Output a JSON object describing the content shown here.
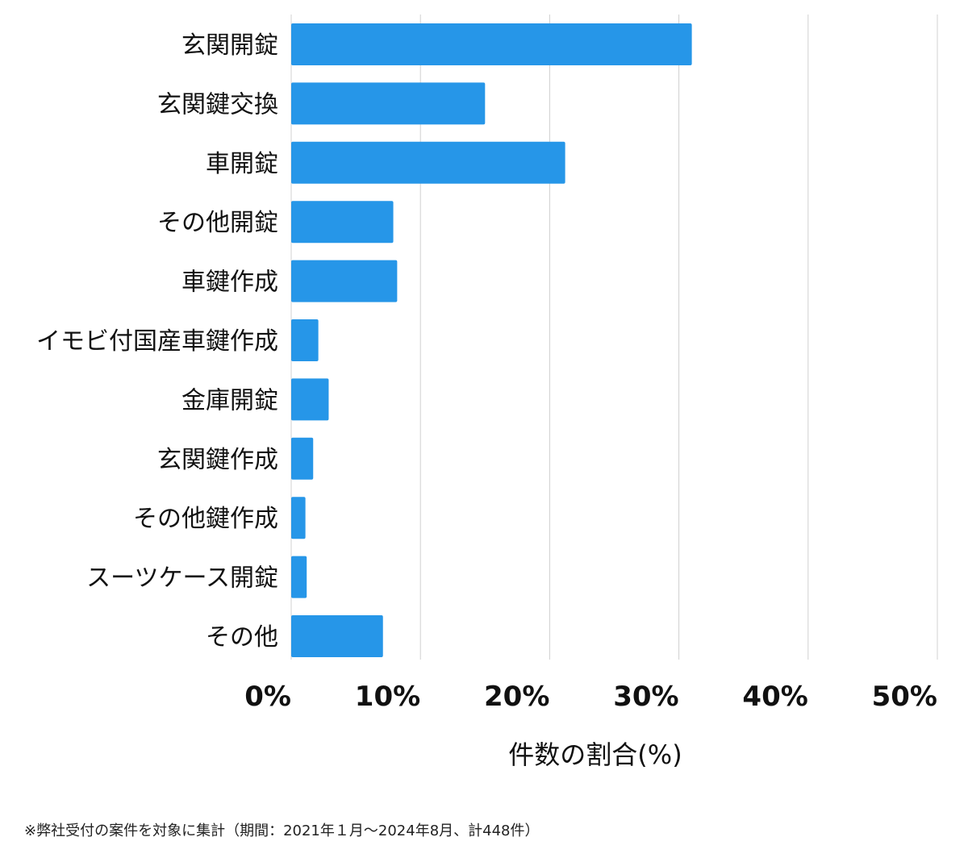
{
  "chart_data": {
    "type": "bar",
    "orientation": "horizontal",
    "categories": [
      "玄関開錠",
      "玄関鍵交換",
      "車開錠",
      "その他開錠",
      "車鍵作成",
      "イモビ付国産車鍵作成",
      "金庫開錠",
      "玄関鍵作成",
      "その他鍵作成",
      "スーツケース開錠",
      "その他"
    ],
    "values": [
      31.0,
      15.0,
      21.2,
      7.9,
      8.2,
      2.1,
      2.9,
      1.7,
      1.1,
      1.2,
      7.1
    ],
    "xlabel": "件数の割合(%)",
    "ylabel": "",
    "xlim": [
      0,
      50
    ],
    "xticks": [
      "0%",
      "10%",
      "20%",
      "30%",
      "40%",
      "50%"
    ],
    "grid": true,
    "bar_color": "#2696e8",
    "grid_color": "#d0d0d0"
  },
  "footnote": "※弊社受付の案件を対象に集計（期間：2021年１月〜2024年8月、計448件）"
}
